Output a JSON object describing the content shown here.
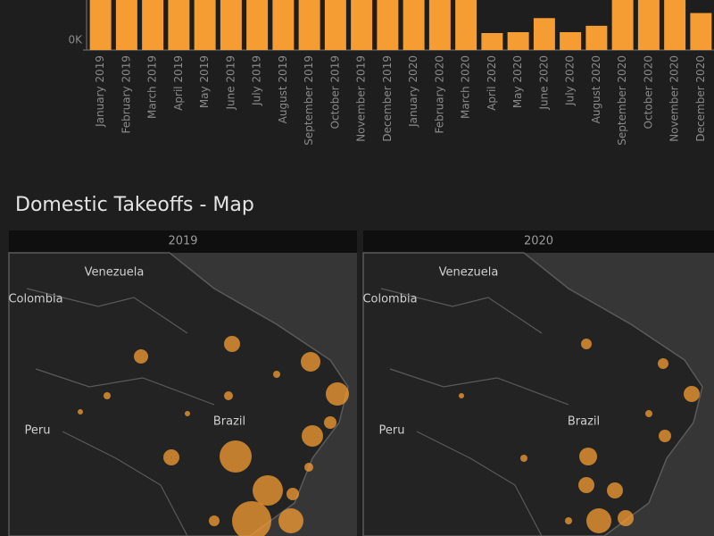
{
  "chart_data": {
    "type": "bar",
    "categories": [
      "January 2019",
      "February 2019",
      "March 2019",
      "April 2019",
      "May 2019",
      "June 2019",
      "July 2019",
      "August 2019",
      "September 2019",
      "October 2019",
      "November 2019",
      "December 2019",
      "January 2020",
      "February 2020",
      "March 2020",
      "April 2020",
      "May 2020",
      "June 2020",
      "July 2020",
      "August 2020",
      "September 2020",
      "October 2020",
      "November 2020",
      "December 2020"
    ],
    "values": [
      62000,
      60000,
      64000,
      62000,
      63000,
      61000,
      66000,
      65000,
      63000,
      65000,
      64000,
      66000,
      67000,
      63000,
      58000,
      13300,
      14000,
      25000,
      14000,
      19000,
      42000,
      46000,
      50000,
      29000
    ],
    "color": "#f59d33",
    "ylim": [
      0,
      80000
    ],
    "yticks": [
      {
        "value": 0,
        "label": "0K"
      }
    ]
  },
  "map": {
    "title": "Domestic Takeoffs - Map",
    "panels": [
      {
        "year": "2019",
        "labels": [
          "Venezuela",
          "Colombia",
          "Peru",
          "Brazil"
        ]
      },
      {
        "year": "2020",
        "labels": [
          "Venezuela",
          "Colombia",
          "Peru",
          "Brazil"
        ]
      }
    ]
  }
}
